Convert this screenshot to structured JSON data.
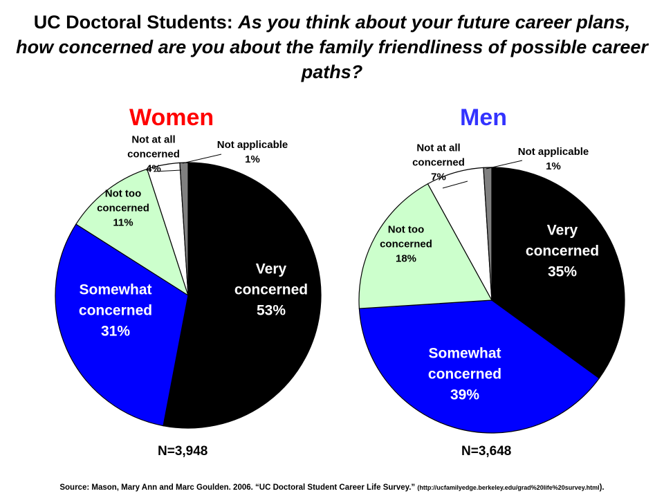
{
  "title": {
    "prefix": "UC Doctoral Students: ",
    "question": "As you think about your future career plans, how concerned are you about the family friendliness of possible career paths?"
  },
  "chart_data": [
    {
      "type": "pie",
      "title": "Women",
      "title_color": "#ff0000",
      "n_label": "N=3,948",
      "slices": [
        {
          "name": "Very concerned",
          "value": 53,
          "color": "#000000",
          "text_color": "#ffffff",
          "label_lines": [
            "Very",
            "concerned",
            "53%"
          ]
        },
        {
          "name": "Somewhat concerned",
          "value": 31,
          "color": "#0000ff",
          "text_color": "#ffffff",
          "label_lines": [
            "Somewhat",
            "concerned",
            "31%"
          ]
        },
        {
          "name": "Not too concerned",
          "value": 11,
          "color": "#ccffcc",
          "text_color": "#000000",
          "label_lines": [
            "Not too",
            "concerned",
            "11%"
          ]
        },
        {
          "name": "Not at all concerned",
          "value": 4,
          "color": "#ffffff",
          "text_color": "#000000",
          "label_lines": [
            "Not at all",
            "concerned",
            "4%"
          ]
        },
        {
          "name": "Not applicable",
          "value": 1,
          "color": "#808080",
          "text_color": "#000000",
          "label_lines": [
            "Not applicable",
            "1%"
          ]
        }
      ]
    },
    {
      "type": "pie",
      "title": "Men",
      "title_color": "#3333ff",
      "n_label": "N=3,648",
      "slices": [
        {
          "name": "Very concerned",
          "value": 35,
          "color": "#000000",
          "text_color": "#ffffff",
          "label_lines": [
            "Very",
            "concerned",
            "35%"
          ]
        },
        {
          "name": "Somewhat concerned",
          "value": 39,
          "color": "#0000ff",
          "text_color": "#ffffff",
          "label_lines": [
            "Somewhat",
            "concerned",
            "39%"
          ]
        },
        {
          "name": "Not too concerned",
          "value": 18,
          "color": "#ccffcc",
          "text_color": "#000000",
          "label_lines": [
            "Not too",
            "concerned",
            "18%"
          ]
        },
        {
          "name": "Not at all concerned",
          "value": 7,
          "color": "#ffffff",
          "text_color": "#000000",
          "label_lines": [
            "Not at all",
            "concerned",
            "7%"
          ]
        },
        {
          "name": "Not applicable",
          "value": 1,
          "color": "#808080",
          "text_color": "#000000",
          "label_lines": [
            "Not applicable",
            "1%"
          ]
        }
      ]
    }
  ],
  "source": {
    "text": "Source: Mason, Mary Ann  and Marc Goulden.  2006. “UC Doctoral  Student Career Life Survey.” ",
    "url": "(http://ucfamilyedge.berkeley.edu/grad%20life%20survey.html",
    "end": ")."
  }
}
